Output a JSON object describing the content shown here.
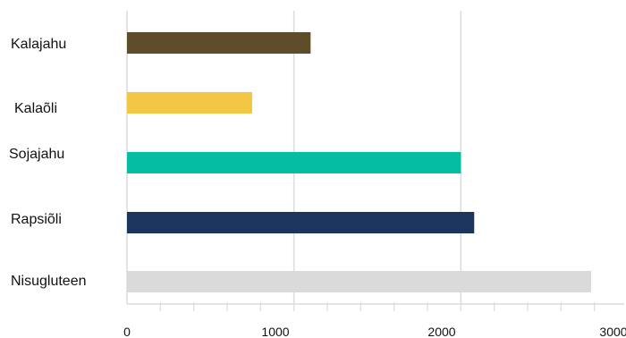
{
  "chart_data": {
    "type": "bar",
    "orientation": "horizontal",
    "categories": [
      "Kalajahu",
      "Kalaõli",
      "Sojajahu",
      "Rapsiõli",
      "Nisugluteen"
    ],
    "values": [
      1100,
      750,
      2000,
      2080,
      2780
    ],
    "colors": [
      "#5e4c2b",
      "#f2c744",
      "#05bda0",
      "#1b355f",
      "#dadada"
    ],
    "xlim": [
      0,
      3000
    ],
    "x_ticks": [
      0,
      1000,
      2000,
      3000
    ],
    "x_tick_labels": [
      "0",
      "1000",
      "2000",
      "3000"
    ],
    "minor_ticks_per_major": 5,
    "grid": true,
    "gridline_color": "#dcdcdc",
    "title": "",
    "xlabel": "",
    "ylabel": ""
  }
}
